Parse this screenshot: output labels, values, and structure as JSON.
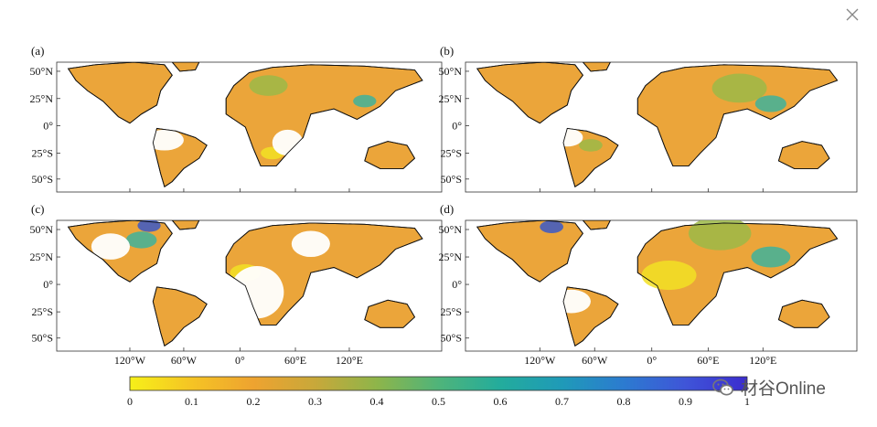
{
  "close_icon": "close-icon",
  "panels": [
    {
      "id": "a",
      "label": "(a)"
    },
    {
      "id": "b",
      "label": "(b)"
    },
    {
      "id": "c",
      "label": "(c)"
    },
    {
      "id": "d",
      "label": "(d)"
    }
  ],
  "lat_ticks": [
    "50°N",
    "25°N",
    "0°",
    "25°S",
    "50°S"
  ],
  "lon_ticks": [
    "120°W",
    "60°W",
    "0°",
    "60°E",
    "120°E"
  ],
  "colorbar": {
    "ticks": [
      "0",
      "0.1",
      "0.2",
      "0.3",
      "0.4",
      "0.5",
      "0.6",
      "0.7",
      "0.8",
      "0.9",
      "1"
    ],
    "colors": [
      "#f6f019",
      "#f5c424",
      "#eea330",
      "#c8a83a",
      "#8eb54a",
      "#4fb47a",
      "#23ac9c",
      "#1f9ab8",
      "#2c7bd0",
      "#3f55d8",
      "#3b2ccf"
    ]
  },
  "map_colors": {
    "low": "#f2e124",
    "mid": "#eba53a",
    "green": "#9cb848",
    "teal": "#3fb19b",
    "blue": "#3b58c8",
    "coast": "#111111"
  },
  "watermark": {
    "icon": "wechat-icon",
    "text": "材谷Online"
  }
}
